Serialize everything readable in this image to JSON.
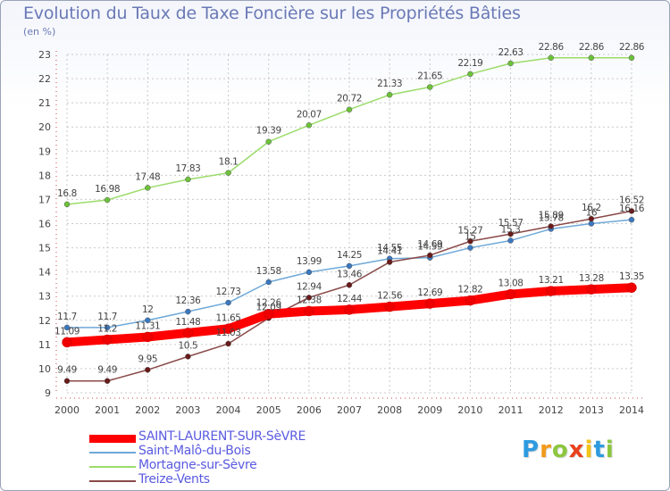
{
  "title": "Evolution du Taux de Taxe Foncière sur les Propriétés Bâties",
  "unit_label": "(en %)",
  "logo": {
    "letters": [
      "P",
      "r",
      "o",
      "x",
      "i",
      "t",
      "i"
    ],
    "colors": [
      "#2e9be0",
      "#f29a1a",
      "#8cc63f",
      "#e8401c",
      "#f2c318",
      "#2e9be0",
      "#8cc63f"
    ]
  },
  "chart_data": {
    "type": "line",
    "x": [
      "2000",
      "2001",
      "2002",
      "2003",
      "2004",
      "2005",
      "2006",
      "2007",
      "2008",
      "2009",
      "2010",
      "2011",
      "2012",
      "2013",
      "2014"
    ],
    "ylim": [
      9,
      23
    ],
    "yticks": [
      9,
      10,
      11,
      12,
      13,
      14,
      15,
      16,
      17,
      18,
      19,
      20,
      21,
      22,
      23
    ],
    "grid": true,
    "legend_position": "bottom",
    "series": [
      {
        "name": "SAINT-LAURENT-SUR-SèVRE",
        "color": "#ff0000",
        "marker": "#ee0000",
        "width": 10,
        "values": [
          11.09,
          11.2,
          11.31,
          11.48,
          11.65,
          12.26,
          12.38,
          12.44,
          12.56,
          12.69,
          12.82,
          13.08,
          13.21,
          13.28,
          13.35
        ],
        "labels": [
          "11.09",
          "11.2",
          "11.31",
          "11.48",
          "11.65",
          "12.26",
          "12.38",
          "12.44",
          "12.56",
          "12.69",
          "12.82",
          "13.08",
          "13.21",
          "13.28",
          "13.35"
        ]
      },
      {
        "name": "Saint-Malô-du-Bois",
        "color": "#6ea8d8",
        "marker": "#3a78c0",
        "width": 1.5,
        "values": [
          11.7,
          11.7,
          12,
          12.36,
          12.73,
          13.58,
          13.99,
          14.25,
          14.55,
          14.59,
          15,
          15.3,
          15.78,
          16,
          16.16
        ],
        "labels": [
          "11.7",
          "11.7",
          "12",
          "12.36",
          "12.73",
          "13.58",
          "13.99",
          "14.25",
          "14.55",
          "14.59",
          "15",
          "15.3",
          "15.78",
          "16",
          "16.16"
        ]
      },
      {
        "name": "Mortagne-sur-Sèvre",
        "color": "#9bdc6a",
        "marker": "#6cc23a",
        "width": 1.5,
        "values": [
          16.8,
          16.98,
          17.48,
          17.83,
          18.1,
          19.39,
          20.07,
          20.72,
          21.33,
          21.65,
          22.19,
          22.63,
          22.86,
          22.86,
          22.86
        ],
        "labels": [
          "16.8",
          "16.98",
          "17.48",
          "17.83",
          "18.1",
          "19.39",
          "20.07",
          "20.72",
          "21.33",
          "21.65",
          "22.19",
          "22.63",
          "22.86",
          "22.86",
          "22.86"
        ]
      },
      {
        "name": "Treize-Vents",
        "color": "#8a4848",
        "marker": "#6a1a1a",
        "width": 1.5,
        "values": [
          9.49,
          9.49,
          9.95,
          10.5,
          11.03,
          12.09,
          12.94,
          13.46,
          14.41,
          14.69,
          15.27,
          15.57,
          15.89,
          16.2,
          16.52
        ],
        "labels": [
          "9.49",
          "9.49",
          "9.95",
          "10.5",
          "11.03",
          "12.09",
          "12.94",
          "13.46",
          "14.41",
          "14.69",
          "15.27",
          "15.57",
          "15.89",
          "16.2",
          "16.52"
        ]
      }
    ]
  }
}
